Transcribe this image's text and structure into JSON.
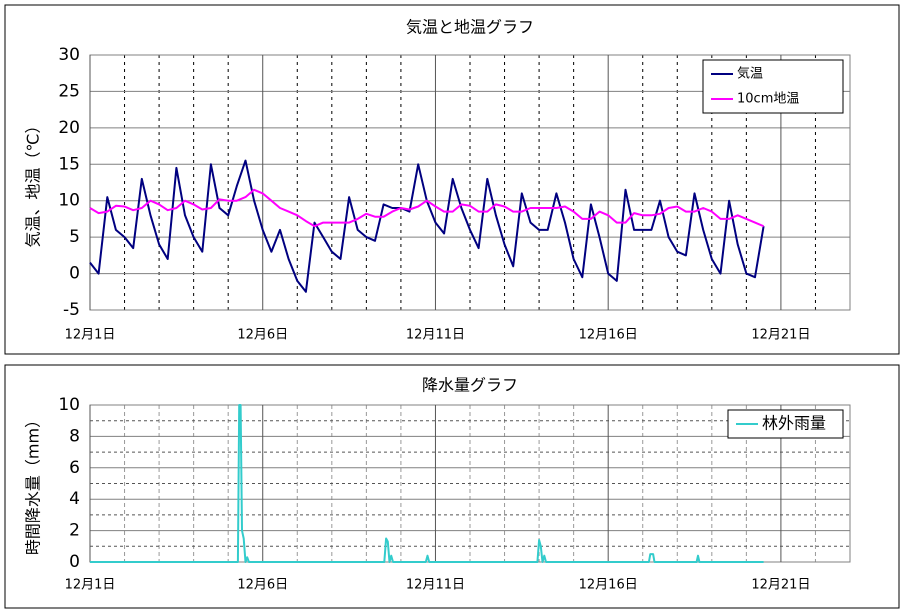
{
  "chart_data": [
    {
      "type": "line",
      "title": "気温と地温グラフ",
      "y_label": "気温、地温（℃）",
      "x": [
        1,
        1.25,
        1.5,
        1.75,
        2,
        2.25,
        2.5,
        2.75,
        3,
        3.25,
        3.5,
        3.75,
        4,
        4.25,
        4.5,
        4.75,
        5,
        5.25,
        5.5,
        5.75,
        6,
        6.25,
        6.5,
        6.75,
        7,
        7.25,
        7.5,
        7.75,
        8,
        8.25,
        8.5,
        8.75,
        9,
        9.25,
        9.5,
        9.75,
        10,
        10.25,
        10.5,
        10.75,
        11,
        11.25,
        11.5,
        11.75,
        12,
        12.25,
        12.5,
        12.75,
        13,
        13.25,
        13.5,
        13.75,
        14,
        14.25,
        14.5,
        14.75,
        15,
        15.25,
        15.5,
        15.75,
        16,
        16.25,
        16.5,
        16.75,
        17,
        17.25,
        17.5,
        17.75,
        18,
        18.25,
        18.5,
        18.75,
        19,
        19.25,
        19.5,
        19.75,
        20,
        20.25,
        20.5
      ],
      "series": [
        {
          "name": "気温",
          "color": "#000080",
          "values": [
            1.5,
            0,
            10.5,
            6,
            5,
            3.5,
            13,
            8,
            4,
            2,
            14.5,
            8,
            5,
            3,
            15,
            9,
            8,
            12,
            15.5,
            10,
            6,
            3,
            6,
            2,
            -1,
            -2.5,
            7,
            5,
            3,
            2,
            10.5,
            6,
            5,
            4.5,
            9.5,
            9,
            9,
            8.5,
            15,
            10,
            7,
            5.5,
            13,
            9,
            6,
            3.5,
            13,
            8,
            4,
            1,
            11,
            7,
            6,
            6,
            11,
            7,
            2,
            -0.5,
            9.5,
            5,
            0,
            -1,
            11.5,
            6,
            6,
            6,
            10,
            5,
            3,
            2.5,
            11,
            6,
            2,
            0,
            10,
            4,
            0,
            -0.5,
            6.5
          ]
        },
        {
          "name": "10cm地温",
          "color": "#ff00ff",
          "values": [
            9,
            8.3,
            8.5,
            9.3,
            9.2,
            8.7,
            9,
            10,
            9.5,
            8.7,
            9,
            10,
            9.5,
            8.8,
            9,
            10.2,
            10,
            10,
            10.5,
            11.5,
            11,
            10,
            9,
            8.5,
            8,
            7.2,
            6.5,
            7,
            7,
            7,
            7,
            7.5,
            8.2,
            7.8,
            7.8,
            8.5,
            9,
            8.8,
            9.2,
            10,
            9.2,
            8.5,
            8.5,
            9.5,
            9.3,
            8.5,
            8.5,
            9.5,
            9.2,
            8.5,
            8.5,
            9,
            9,
            9,
            9,
            9.2,
            8.5,
            7.5,
            7.5,
            8.5,
            8,
            7,
            7,
            8.3,
            8,
            8,
            8.2,
            9,
            9.2,
            8.5,
            8.5,
            9,
            8.5,
            7.5,
            7.5,
            8,
            7.5,
            7,
            6.5
          ]
        }
      ],
      "xlim": [
        1,
        23
      ],
      "xticks": [
        {
          "value": 1,
          "label": "12月1日"
        },
        {
          "value": 6,
          "label": "12月6日"
        },
        {
          "value": 11,
          "label": "12月11日"
        },
        {
          "value": 16,
          "label": "12月16日"
        },
        {
          "value": 21,
          "label": "12月21日"
        }
      ],
      "ylim": [
        -5,
        30
      ],
      "yticks": [
        -5,
        0,
        5,
        10,
        15,
        20,
        25,
        30
      ],
      "grid": true,
      "legend": "upper right"
    },
    {
      "type": "line",
      "title": "降水量グラフ",
      "y_label": "時間降水量（mm）",
      "x": [
        1,
        5.28,
        5.32,
        5.36,
        5.4,
        5.45,
        5.5,
        5.55,
        5.6,
        9.52,
        9.57,
        9.62,
        9.67,
        9.72,
        9.77,
        10.72,
        10.77,
        10.82,
        13.95,
        14,
        14.05,
        14.1,
        14.15,
        14.2,
        17.18,
        17.22,
        17.3,
        17.34,
        18.56,
        18.6,
        18.64,
        20.5
      ],
      "series": [
        {
          "name": "林外雨量",
          "color": "#33cccc",
          "values": [
            0,
            0,
            10,
            10,
            2,
            1.5,
            0,
            0.3,
            0,
            0,
            1.5,
            1.3,
            0,
            0.4,
            0,
            0,
            0.4,
            0,
            0,
            1.4,
            1,
            0,
            0.4,
            0,
            0,
            0.5,
            0.5,
            0,
            0,
            0.4,
            0,
            0
          ]
        }
      ],
      "xlim": [
        1,
        23
      ],
      "xticks": [
        {
          "value": 1,
          "label": "12月1日"
        },
        {
          "value": 6,
          "label": "12月6日"
        },
        {
          "value": 11,
          "label": "12月11日"
        },
        {
          "value": 16,
          "label": "12月16日"
        },
        {
          "value": 21,
          "label": "12月21日"
        }
      ],
      "ylim": [
        0,
        10
      ],
      "yticks": [
        0,
        2,
        4,
        6,
        8,
        10
      ],
      "grid": true,
      "legend": "upper right"
    }
  ]
}
